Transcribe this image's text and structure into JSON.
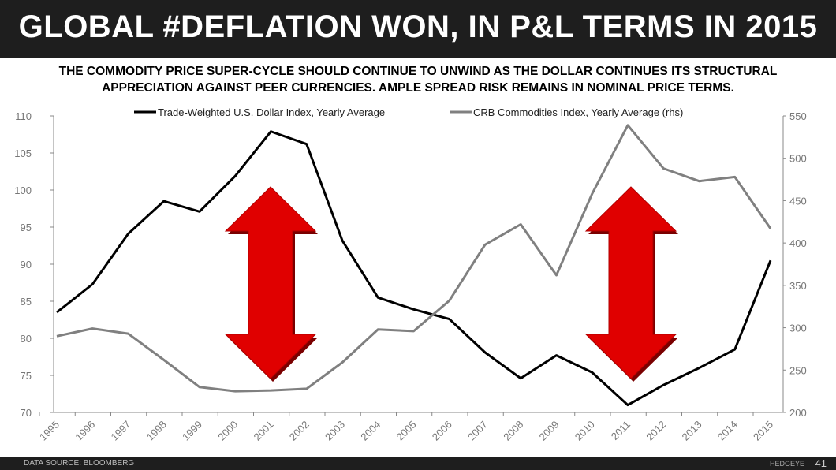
{
  "header": {
    "title": "GLOBAL #DEFLATION WON, IN P&L TERMS IN 2015",
    "subtitle_line1": "THE COMMODITY PRICE SUPER-CYCLE SHOULD CONTINUE TO UNWIND AS THE DOLLAR CONTINUES ITS STRUCTURAL",
    "subtitle_line2": "APPRECIATION AGAINST PEER CURRENCIES. AMPLE SPREAD RISK REMAINS IN NOMINAL PRICE TERMS."
  },
  "footer": {
    "source": "DATA SOURCE: BLOOMBERG",
    "brand": "HEDGEYE",
    "page": "41"
  },
  "chart_data": {
    "type": "line",
    "x": [
      "1995",
      "1996",
      "1997",
      "1998",
      "1999",
      "2000",
      "2001",
      "2002",
      "2003",
      "2004",
      "2005",
      "2006",
      "2007",
      "2008",
      "2009",
      "2010",
      "2011",
      "2012",
      "2013",
      "2014",
      "2015"
    ],
    "series": [
      {
        "name": "Trade-Weighted U.S. Dollar Index, Yearly Average",
        "axis": "left",
        "color": "#000000",
        "values": [
          83.5,
          87.3,
          94.1,
          98.5,
          97.1,
          101.9,
          107.9,
          106.2,
          93.2,
          85.5,
          83.9,
          82.6,
          78.1,
          74.6,
          77.7,
          75.4,
          71.0,
          73.7,
          76.0,
          78.5,
          90.5
        ]
      },
      {
        "name": "CRB Commodities Index, Yearly Average (rhs)",
        "axis": "right",
        "color": "#808080",
        "values": [
          290,
          299,
          293,
          262,
          230,
          225,
          226,
          228,
          259,
          298,
          296,
          332,
          398,
          422,
          362,
          458,
          539,
          488,
          473,
          478,
          417
        ]
      }
    ],
    "ylim_left": [
      70,
      110
    ],
    "yticks_left": [
      70,
      75,
      80,
      85,
      90,
      95,
      100,
      105,
      110
    ],
    "ylim_right": [
      200,
      550
    ],
    "yticks_right": [
      200,
      250,
      300,
      350,
      400,
      450,
      500,
      550
    ],
    "legend": "top-center",
    "grid": false,
    "arrow_color": "#e00000"
  }
}
